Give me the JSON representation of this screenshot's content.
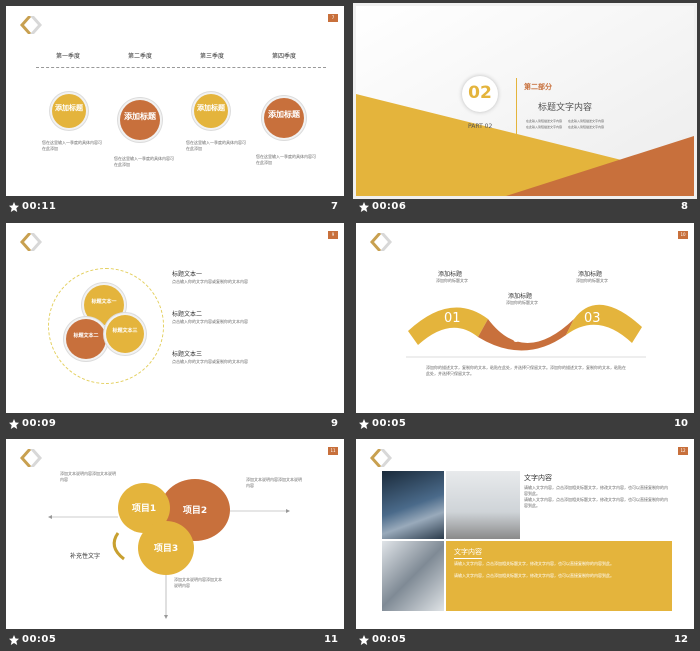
{
  "colors": {
    "gold": "#e4b43c",
    "rust": "#c8703c",
    "background": "#3c3c3c"
  },
  "slides": [
    {
      "timer": "00:11",
      "number": "7",
      "quarters": [
        "第一季度",
        "第二季度",
        "第三季度",
        "第四季度"
      ],
      "circle_label": "添加标题",
      "desc": "您在这里输入一季度的具体内容可在此添加"
    },
    {
      "timer": "00:06",
      "number": "8",
      "big_num": "02",
      "part": "PART 02",
      "section_title": "第二部分",
      "main_title": "标题文字内容",
      "bullets": [
        "在此输入简短描述文字内容",
        "在此输入简短描述文字内容",
        "在此输入简短描述文字内容",
        "在此输入简短描述文字内容"
      ]
    },
    {
      "timer": "00:09",
      "number": "9",
      "circles": [
        "标题文本一",
        "标题文本二",
        "标题文本三"
      ],
      "headings": [
        "标题文本一",
        "标题文本二",
        "标题文本三"
      ],
      "body": "点击输入你的文字内容或复制你的文本内容"
    },
    {
      "timer": "00:05",
      "number": "10",
      "labels": [
        "添加标题",
        "添加标题",
        "添加标题"
      ],
      "sublabel": "添加你的标题文字",
      "steps": [
        "01",
        "02",
        "03"
      ],
      "desc": "添加你的描述文字，复制你的文本，粘贴在此处，并选择只保留文字。添加你的描述文字，复制你的文本，粘贴在此处，并选择只保留文字。"
    },
    {
      "timer": "00:05",
      "number": "11",
      "items": [
        "项目1",
        "项目2",
        "项目3"
      ],
      "supplement": "补充性文字",
      "note": "添加文本说明内容添加文本说明内容"
    },
    {
      "timer": "00:05",
      "number": "12",
      "heading1": "文字内容",
      "heading2": "文字内容",
      "body": "请输入文字内容，点击添加相关标题文字，修改文字内容，也可以直接复制你的内容到此。"
    }
  ]
}
